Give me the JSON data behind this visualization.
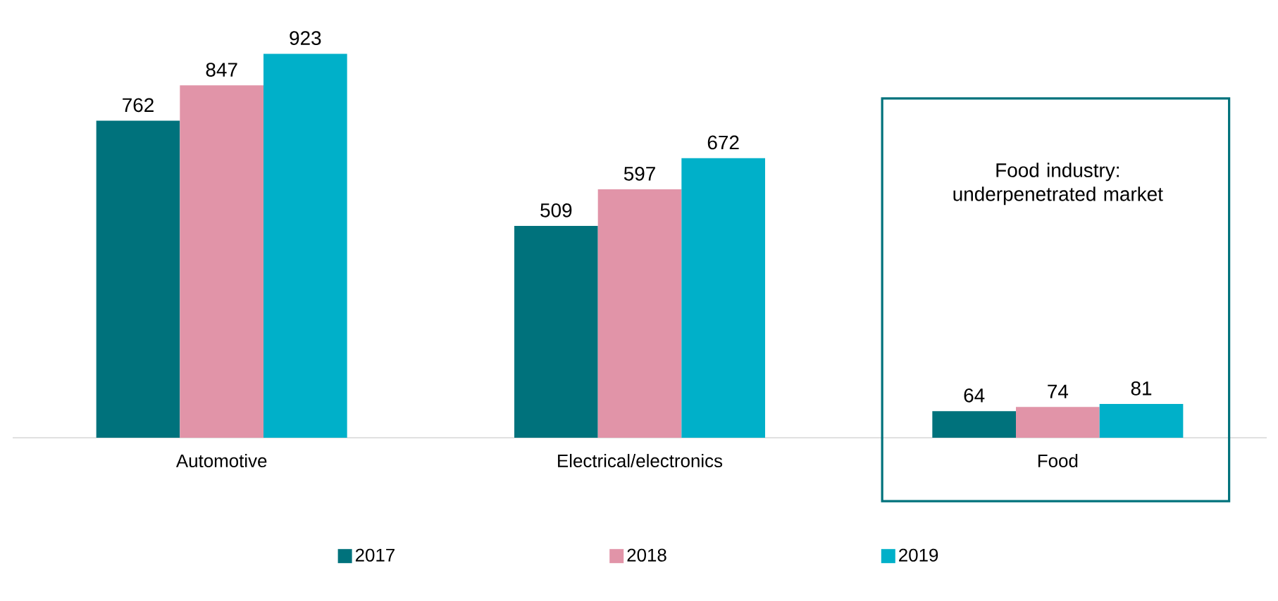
{
  "chart_data": {
    "type": "bar",
    "categories": [
      "Automotive",
      "Electrical/electronics",
      "Food"
    ],
    "series": [
      {
        "name": "2017",
        "color": "#00727c",
        "values": [
          762,
          509,
          64
        ]
      },
      {
        "name": "2018",
        "color": "#e194a8",
        "values": [
          847,
          597,
          74
        ]
      },
      {
        "name": "2019",
        "color": "#00b0c9",
        "values": [
          923,
          672,
          81
        ]
      }
    ],
    "data_labels": true,
    "legend": "bottom",
    "annotations": [
      "Food industry: underpenetrated market"
    ]
  }
}
